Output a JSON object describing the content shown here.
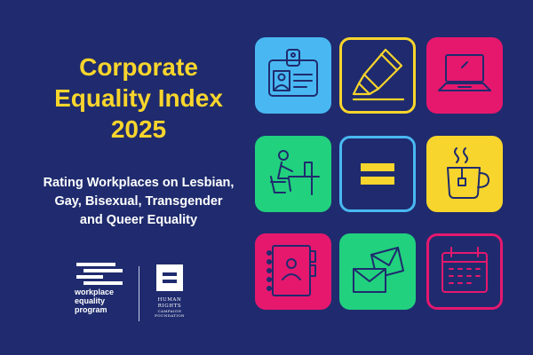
{
  "title_lines": [
    "Corporate",
    "Equality Index",
    "2025"
  ],
  "subtitle_lines": [
    "Rating Workplaces on Lesbian,",
    "Gay, Bisexual, Transgender",
    "and Queer Equality"
  ],
  "logos": {
    "workplace_program_lines": [
      "workplace",
      "equality",
      "program"
    ],
    "hrc_lines": [
      "HUMAN",
      "RIGHTS",
      "CAMPAIGN",
      "FOUNDATION"
    ]
  },
  "colors": {
    "background": "#1f2b6e",
    "yellow": "#f8d52c",
    "blue": "#49b8f2",
    "pink": "#e5186e",
    "green": "#21d17e",
    "navy": "#1f2b6e"
  },
  "tiles": [
    {
      "icon": "id-badge-icon",
      "style": "filled",
      "color": "blue"
    },
    {
      "icon": "highlighter-icon",
      "style": "outline",
      "color": "yellow"
    },
    {
      "icon": "laptop-icon",
      "style": "filled",
      "color": "pink"
    },
    {
      "icon": "person-at-desk-icon",
      "style": "filled",
      "color": "green"
    },
    {
      "icon": "equal-sign-icon",
      "style": "outline",
      "color": "blue"
    },
    {
      "icon": "coffee-mug-icon",
      "style": "filled",
      "color": "yellow"
    },
    {
      "icon": "contact-notebook-icon",
      "style": "filled",
      "color": "pink"
    },
    {
      "icon": "envelopes-icon",
      "style": "filled",
      "color": "green"
    },
    {
      "icon": "calendar-icon",
      "style": "outline",
      "color": "pink"
    }
  ]
}
